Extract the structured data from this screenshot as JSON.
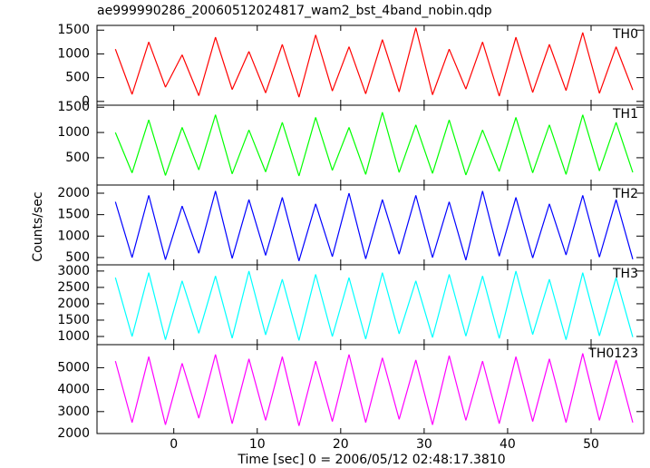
{
  "title": "ae999990286_20060512024817_wam2_bst_4band_nobin.qdp",
  "x_label": "Time [sec] 0 = 2006/05/12 02:48:17.3810",
  "y_label": "Counts/sec",
  "chart_data": [
    {
      "type": "line",
      "name": "TH0",
      "color": "#ff0000",
      "xlim": [
        -9.2,
        56.3
      ],
      "ylim": [
        -80,
        1600
      ],
      "yticks": [
        0,
        500,
        1000,
        1500
      ],
      "x": [
        -7,
        -5,
        -3,
        -1,
        1,
        3,
        5,
        7,
        9,
        11,
        13,
        15,
        17,
        19,
        21,
        23,
        25,
        27,
        29,
        31,
        33,
        35,
        37,
        39,
        41,
        43,
        45,
        47,
        49,
        51,
        53,
        55
      ],
      "values": [
        1100,
        150,
        1250,
        300,
        980,
        120,
        1350,
        250,
        1050,
        180,
        1200,
        90,
        1400,
        220,
        1150,
        160,
        1300,
        200,
        1550,
        140,
        1100,
        260,
        1250,
        110,
        1350,
        190,
        1200,
        230,
        1450,
        170,
        1150,
        240
      ]
    },
    {
      "type": "line",
      "name": "TH1",
      "color": "#00ff00",
      "xlim": [
        -9.2,
        56.3
      ],
      "ylim": [
        -40,
        1540
      ],
      "yticks": [
        500,
        1000,
        1500
      ],
      "x": [
        -7,
        -5,
        -3,
        -1,
        1,
        3,
        5,
        7,
        9,
        11,
        13,
        15,
        17,
        19,
        21,
        23,
        25,
        27,
        29,
        31,
        33,
        35,
        37,
        39,
        41,
        43,
        45,
        47,
        49,
        51,
        53,
        55
      ],
      "values": [
        1000,
        200,
        1250,
        150,
        1100,
        260,
        1350,
        180,
        1050,
        220,
        1200,
        140,
        1300,
        250,
        1100,
        170,
        1400,
        210,
        1150,
        190,
        1250,
        160,
        1050,
        230,
        1300,
        200,
        1150,
        170,
        1350,
        240,
        1200,
        210
      ]
    },
    {
      "type": "line",
      "name": "TH2",
      "color": "#0000ff",
      "xlim": [
        -9.2,
        56.3
      ],
      "ylim": [
        330,
        2190
      ],
      "yticks": [
        500,
        1000,
        1500,
        2000
      ],
      "x": [
        -7,
        -5,
        -3,
        -1,
        1,
        3,
        5,
        7,
        9,
        11,
        13,
        15,
        17,
        19,
        21,
        23,
        25,
        27,
        29,
        31,
        33,
        35,
        37,
        39,
        41,
        43,
        45,
        47,
        49,
        51,
        53,
        55
      ],
      "values": [
        1800,
        500,
        1950,
        450,
        1700,
        600,
        2050,
        480,
        1850,
        550,
        1900,
        420,
        1750,
        520,
        2000,
        470,
        1850,
        580,
        1950,
        500,
        1800,
        440,
        2050,
        530,
        1900,
        490,
        1750,
        560,
        1950,
        510,
        1850,
        460
      ]
    },
    {
      "type": "line",
      "name": "TH3",
      "color": "#00ffff",
      "xlim": [
        -9.2,
        56.3
      ],
      "ylim": [
        750,
        3190
      ],
      "yticks": [
        1000,
        1500,
        2000,
        2500,
        3000
      ],
      "x": [
        -7,
        -5,
        -3,
        -1,
        1,
        3,
        5,
        7,
        9,
        11,
        13,
        15,
        17,
        19,
        21,
        23,
        25,
        27,
        29,
        31,
        33,
        35,
        37,
        39,
        41,
        43,
        45,
        47,
        49,
        51,
        53,
        55
      ],
      "values": [
        2800,
        1000,
        2950,
        900,
        2700,
        1100,
        2850,
        950,
        3000,
        1050,
        2750,
        880,
        2900,
        1000,
        2800,
        920,
        2950,
        1080,
        2700,
        970,
        2900,
        1010,
        2850,
        940,
        3000,
        1060,
        2750,
        900,
        2950,
        1020,
        2800,
        980
      ]
    },
    {
      "type": "line",
      "name": "TH0123",
      "color": "#ff00ff",
      "xlim": [
        -9.2,
        56.3
      ],
      "ylim": [
        2000,
        6050
      ],
      "yticks": [
        2000,
        3000,
        4000,
        5000
      ],
      "xticks": [
        0,
        10,
        20,
        30,
        40,
        50
      ],
      "x": [
        -7,
        -5,
        -3,
        -1,
        1,
        3,
        5,
        7,
        9,
        11,
        13,
        15,
        17,
        19,
        21,
        23,
        25,
        27,
        29,
        31,
        33,
        35,
        37,
        39,
        41,
        43,
        45,
        47,
        49,
        51,
        53,
        55
      ],
      "values": [
        5300,
        2500,
        5500,
        2400,
        5200,
        2700,
        5600,
        2450,
        5400,
        2600,
        5500,
        2350,
        5300,
        2550,
        5600,
        2500,
        5450,
        2650,
        5350,
        2400,
        5550,
        2600,
        5300,
        2450,
        5500,
        2550,
        5400,
        2500,
        5650,
        2600,
        5350,
        2500
      ]
    }
  ]
}
